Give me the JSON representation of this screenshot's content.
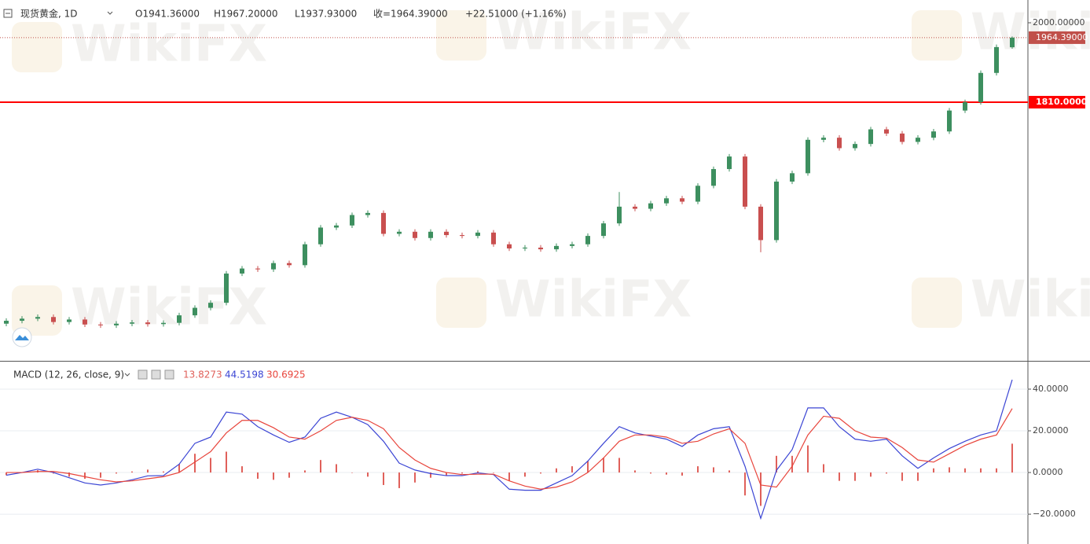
{
  "watermark": "WikiFX",
  "chart_data": [
    {
      "type": "candlestick",
      "legend": {
        "symbol": "现货黄金, 1D",
        "open": "O1941.36000",
        "high": "H1967.20000",
        "low": "L1937.93000",
        "close": "收=1964.39000",
        "change": "+22.51000 (+1.16%)"
      },
      "open": [
        1280,
        1287,
        1292,
        1296,
        1284,
        1290,
        1278,
        1276,
        1280,
        1283,
        1279,
        1282,
        1300,
        1318,
        1330,
        1400,
        1412,
        1410,
        1425,
        1420,
        1470,
        1510,
        1515,
        1540,
        1545,
        1495,
        1500,
        1485,
        1500,
        1492,
        1490,
        1498,
        1470,
        1460,
        1462,
        1458,
        1466,
        1470,
        1490,
        1520,
        1560,
        1555,
        1568,
        1580,
        1572,
        1610,
        1650,
        1680,
        1560,
        1480,
        1620,
        1640,
        1720,
        1725,
        1700,
        1710,
        1745,
        1735,
        1715,
        1725,
        1740,
        1790,
        1810,
        1880,
        1941.36
      ],
      "high": [
        1293,
        1298,
        1302,
        1302,
        1296,
        1296,
        1284,
        1286,
        1289,
        1289,
        1288,
        1306,
        1324,
        1336,
        1406,
        1418,
        1418,
        1431,
        1431,
        1476,
        1516,
        1521,
        1546,
        1551,
        1551,
        1506,
        1506,
        1506,
        1506,
        1498,
        1504,
        1504,
        1476,
        1468,
        1468,
        1472,
        1476,
        1496,
        1526,
        1595,
        1566,
        1574,
        1586,
        1586,
        1616,
        1656,
        1686,
        1686,
        1566,
        1626,
        1646,
        1726,
        1731,
        1731,
        1716,
        1751,
        1751,
        1741,
        1731,
        1746,
        1796,
        1816,
        1886,
        1948,
        1967.2
      ],
      "low": [
        1274,
        1281,
        1286,
        1278,
        1278,
        1272,
        1270,
        1270,
        1274,
        1273,
        1273,
        1276,
        1294,
        1312,
        1324,
        1394,
        1404,
        1404,
        1414,
        1414,
        1464,
        1504,
        1509,
        1534,
        1489,
        1489,
        1479,
        1479,
        1486,
        1484,
        1484,
        1464,
        1454,
        1454,
        1452,
        1452,
        1460,
        1464,
        1484,
        1514,
        1549,
        1549,
        1562,
        1566,
        1566,
        1604,
        1644,
        1554,
        1451,
        1474,
        1614,
        1634,
        1714,
        1694,
        1694,
        1704,
        1729,
        1709,
        1709,
        1719,
        1734,
        1784,
        1804,
        1874,
        1937.93
      ],
      "close": [
        1287,
        1292,
        1296,
        1284,
        1290,
        1278,
        1276,
        1280,
        1283,
        1279,
        1282,
        1300,
        1318,
        1330,
        1400,
        1412,
        1410,
        1425,
        1420,
        1470,
        1510,
        1515,
        1540,
        1545,
        1495,
        1500,
        1485,
        1500,
        1492,
        1490,
        1498,
        1470,
        1460,
        1462,
        1458,
        1466,
        1470,
        1490,
        1520,
        1560,
        1555,
        1568,
        1580,
        1572,
        1610,
        1650,
        1680,
        1560,
        1480,
        1620,
        1640,
        1720,
        1725,
        1700,
        1710,
        1745,
        1735,
        1715,
        1725,
        1740,
        1790,
        1810,
        1880,
        1941.88,
        1964.39
      ],
      "up_color": "#3d8f5f",
      "down_color": "#c94f4f",
      "ylim": [
        1193,
        2054.5
      ],
      "yticks": [
        {
          "value": 2000,
          "label": "2000.00000"
        }
      ],
      "last_price": {
        "value": 1964.39,
        "label": "1964.39000",
        "color": "#c0504a"
      },
      "horizontal_line": {
        "value": 1810,
        "label": "1810.00000",
        "color": "#ff0000"
      }
    },
    {
      "type": "macd",
      "title": "MACD (12, 26, close, 9)",
      "ylim": [
        -34.3,
        53.2
      ],
      "yticks": [
        {
          "value": 40,
          "label": "40.0000"
        },
        {
          "value": 20,
          "label": "20.0000"
        },
        {
          "value": 0,
          "label": "0.0000"
        },
        {
          "value": -20,
          "label": "−20.0000"
        }
      ],
      "grid": true,
      "series": [
        {
          "style": "histogram",
          "color": "#e0605a",
          "legend_value": "13.8273",
          "values": [
            -1.3,
            0,
            1.1,
            -0.5,
            -2,
            -3,
            -2.5,
            -0.5,
            0.5,
            1.4,
            0.5,
            4,
            9,
            7,
            10,
            3,
            -3,
            -3.5,
            -2.5,
            1,
            6,
            4,
            0,
            -2,
            -6,
            -7.5,
            -4.8,
            -2.5,
            -1.5,
            -0.5,
            0.6,
            -0.2,
            -4,
            -2,
            -0.5,
            2,
            3,
            5.5,
            7,
            7,
            1,
            -0.5,
            -1,
            -1.5,
            3,
            2.5,
            1,
            -11,
            -16,
            8,
            8,
            13,
            4,
            -4,
            -4,
            -2,
            -0.5,
            -4,
            -4,
            2,
            2.5,
            2,
            2,
            2,
            13.8273
          ]
        },
        {
          "style": "line",
          "color": "#3b45d4",
          "legend_value": "44.5198",
          "values": [
            -1.3,
            0,
            1.6,
            0,
            -2.5,
            -5,
            -6,
            -5,
            -3.5,
            -1.6,
            -1.5,
            4,
            14,
            17,
            29,
            28,
            22,
            18,
            14.5,
            17,
            26,
            29,
            26.5,
            23,
            15,
            4.5,
            1.2,
            -0.5,
            -1.5,
            -1.5,
            -0.2,
            -1,
            -8,
            -8.5,
            -8.5,
            -5,
            -1.5,
            5.5,
            14,
            22,
            19,
            17.5,
            16,
            12.5,
            18,
            21,
            22,
            3,
            -22,
            1,
            11,
            31,
            31,
            22,
            16,
            15,
            16,
            8,
            2,
            7,
            11.5,
            15,
            18,
            20,
            44.5198
          ]
        },
        {
          "style": "line",
          "color": "#e8453c",
          "legend_value": "30.6925",
          "values": [
            0,
            0,
            0.5,
            0.5,
            -0.5,
            -2,
            -3.5,
            -4.5,
            -4,
            -3,
            -2,
            0,
            5,
            10,
            19,
            25,
            25,
            21.5,
            17,
            16,
            20,
            25,
            26.5,
            25,
            21,
            12,
            6,
            2,
            0,
            -1,
            -0.8,
            -0.8,
            -4,
            -6.5,
            -8,
            -7,
            -4.5,
            0,
            7,
            15,
            18,
            18,
            17,
            14,
            15,
            18.5,
            21,
            14,
            -6,
            -7,
            3,
            18,
            27,
            26,
            20,
            17,
            16.5,
            12,
            6,
            5,
            9,
            13,
            16,
            18,
            30.6925
          ]
        }
      ]
    }
  ]
}
